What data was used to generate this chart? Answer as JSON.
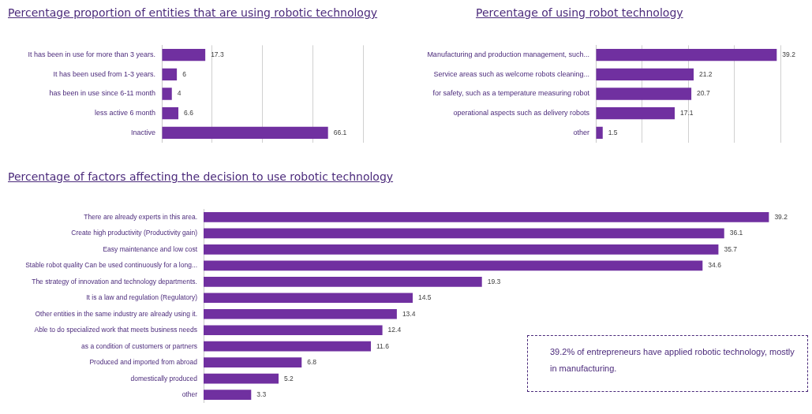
{
  "chart_data": [
    {
      "type": "bar",
      "orientation": "horizontal",
      "title": "Percentage proportion of entities that are using robotic technology",
      "categories": [
        "It has been in use for more than 3 years.",
        "It has been used from 1-3 years.",
        "has been in use since 6-11 month",
        "less active 6 month",
        "Inactive"
      ],
      "values": [
        17.3,
        6,
        4,
        6.6,
        66.1
      ],
      "color": "#7030a0",
      "data_labels": true,
      "grid": "x",
      "tick_labels": "y"
    },
    {
      "type": "bar",
      "orientation": "horizontal",
      "title": "Percentage of using robot technology",
      "categories": [
        "Manufacturing and production management, such...",
        "Service areas such as welcome robots cleaning...",
        "for safety, such as a temperature measuring robot",
        "operational aspects such as delivery robots",
        "other"
      ],
      "values": [
        39.2,
        21.2,
        20.7,
        17.1,
        1.5
      ],
      "color": "#7030a0",
      "data_labels": true,
      "grid": "x",
      "tick_labels": "y"
    },
    {
      "type": "bar",
      "orientation": "horizontal",
      "title": "Percentage of factors affecting the decision to use robotic technology",
      "categories": [
        "There are already experts in this area.",
        "Create high productivity (Productivity gain)",
        "Easy maintenance and low cost",
        "Stable robot quality Can be used continuously for a long...",
        "The strategy of innovation and technology departments.",
        "It is a law and regulation (Regulatory)",
        "Other entities in the same industry are already using it.",
        "Able to do specialized work that meets business needs",
        "as a condition of customers or partners",
        "Produced and imported from abroad",
        "domestically produced",
        "other"
      ],
      "values": [
        39.2,
        36.1,
        35.7,
        34.6,
        19.3,
        14.5,
        13.4,
        12.4,
        11.6,
        6.8,
        5.2,
        3.3
      ],
      "color": "#7030a0",
      "data_labels": true,
      "tick_labels": "y",
      "annotations": [
        "39.2% of entrepreneurs have applied robotic technology, mostly in manufacturing."
      ]
    }
  ]
}
